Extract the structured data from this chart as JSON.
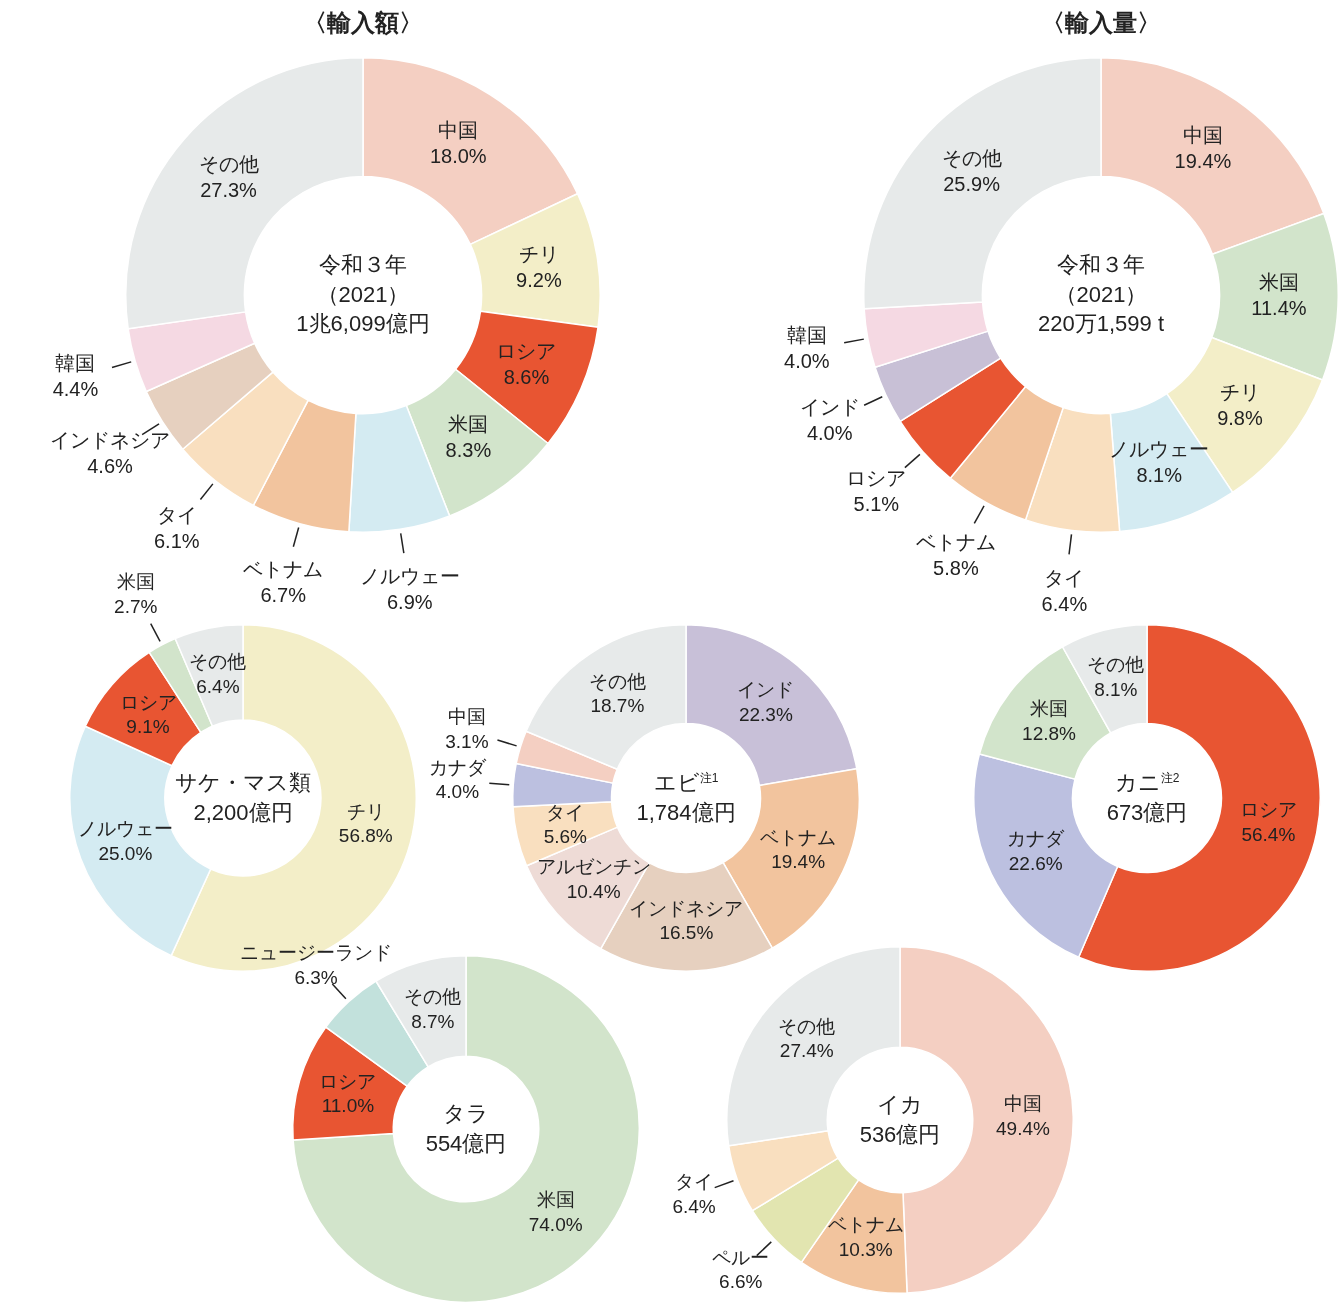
{
  "chart_data": [
    {
      "type": "donut",
      "title": "〈輸入額〉",
      "annotations": [
        "令和３年",
        "（2021）",
        "1兆6,099億円"
      ],
      "categories": [
        "中国",
        "チリ",
        "ロシア",
        "米国",
        "ノルウェー",
        "ベトナム",
        "タイ",
        "インドネシア",
        "韓国",
        "その他"
      ],
      "values": [
        18.0,
        9.2,
        8.6,
        8.3,
        6.9,
        6.7,
        6.1,
        4.6,
        4.4,
        27.3
      ],
      "value_labels": [
        "18.0%",
        "9.2%",
        "8.6%",
        "8.3%",
        "6.9%",
        "6.7%",
        "6.1%",
        "4.6%",
        "4.4%",
        "27.3%"
      ],
      "colors": [
        "#f4cfc2",
        "#f3eec8",
        "#e85532",
        "#d2e4cb",
        "#d4ebf2",
        "#f2c49e",
        "#f9dfbf",
        "#e6d0bf",
        "#f5d9e3",
        "#e7eaea"
      ]
    },
    {
      "type": "donut",
      "title": "〈輸入量〉",
      "annotations": [
        "令和３年",
        "（2021）",
        "220万1,599 t"
      ],
      "categories": [
        "中国",
        "米国",
        "チリ",
        "ノルウェー",
        "タイ",
        "ベトナム",
        "ロシア",
        "インド",
        "韓国",
        "その他"
      ],
      "values": [
        19.4,
        11.4,
        9.8,
        8.1,
        6.4,
        5.8,
        5.1,
        4.0,
        4.0,
        25.9
      ],
      "value_labels": [
        "19.4%",
        "11.4%",
        "9.8%",
        "8.1%",
        "6.4%",
        "5.8%",
        "5.1%",
        "4.0%",
        "4.0%",
        "25.9%"
      ],
      "colors": [
        "#f4cfc2",
        "#d2e4cb",
        "#f3eec8",
        "#d4ebf2",
        "#f9dfbf",
        "#f2c49e",
        "#e85532",
        "#c8c0d6",
        "#f5d9e3",
        "#e7eaea"
      ]
    },
    {
      "type": "donut",
      "annotations": [
        "サケ・マス類",
        "2,200億円"
      ],
      "categories": [
        "チリ",
        "ノルウェー",
        "ロシア",
        "米国",
        "その他"
      ],
      "values": [
        56.8,
        25.0,
        9.1,
        2.7,
        6.4
      ],
      "value_labels": [
        "56.8%",
        "25.0%",
        "9.1%",
        "2.7%",
        "6.4%"
      ],
      "colors": [
        "#f3eec8",
        "#d4ebf2",
        "#e85532",
        "#d2e4cb",
        "#e7eaea"
      ]
    },
    {
      "type": "donut",
      "annotations": [
        "エビ$^{注1}$",
        "1,784億円"
      ],
      "categories": [
        "インド",
        "ベトナム",
        "インドネシア",
        "アルゼンチン",
        "タイ",
        "カナダ",
        "中国",
        "その他"
      ],
      "values": [
        22.3,
        19.4,
        16.5,
        10.4,
        5.6,
        4.0,
        3.1,
        18.7
      ],
      "value_labels": [
        "22.3%",
        "19.4%",
        "16.5%",
        "10.4%",
        "5.6%",
        "4.0%",
        "3.1%",
        "18.7%"
      ],
      "colors": [
        "#c8c0d8",
        "#f2c49e",
        "#e6d0bf",
        "#eedbd6",
        "#f9dfbf",
        "#bcc0e0",
        "#f4cfc2",
        "#e7eaea"
      ]
    },
    {
      "type": "donut",
      "annotations": [
        "カニ$^{注2}$",
        "673億円"
      ],
      "categories": [
        "ロシア",
        "カナダ",
        "米国",
        "その他"
      ],
      "values": [
        56.4,
        22.6,
        12.8,
        8.1
      ],
      "value_labels": [
        "56.4%",
        "22.6%",
        "12.8%",
        "8.1%"
      ],
      "colors": [
        "#e85532",
        "#bcc0e0",
        "#d2e4cb",
        "#e7eaea"
      ]
    },
    {
      "type": "donut",
      "annotations": [
        "タラ",
        "554億円"
      ],
      "categories": [
        "米国",
        "ロシア",
        "ニュージーランド",
        "その他"
      ],
      "values": [
        74.0,
        11.0,
        6.3,
        8.7
      ],
      "value_labels": [
        "74.0%",
        "11.0%",
        "6.3%",
        "8.7%"
      ],
      "colors": [
        "#d2e4cb",
        "#e85532",
        "#c2e1dc",
        "#e7eaea"
      ]
    },
    {
      "type": "donut",
      "annotations": [
        "イカ",
        "536億円"
      ],
      "categories": [
        "中国",
        "ベトナム",
        "ペルー",
        "タイ",
        "その他"
      ],
      "values": [
        49.4,
        10.3,
        6.6,
        6.4,
        27.4
      ],
      "value_labels": [
        "49.4%",
        "10.3%",
        "6.6%",
        "6.4%",
        "27.4%"
      ],
      "colors": [
        "#f4cfc2",
        "#f2c49e",
        "#e2e5b0",
        "#f9dfbf",
        "#e7eaea"
      ]
    }
  ]
}
